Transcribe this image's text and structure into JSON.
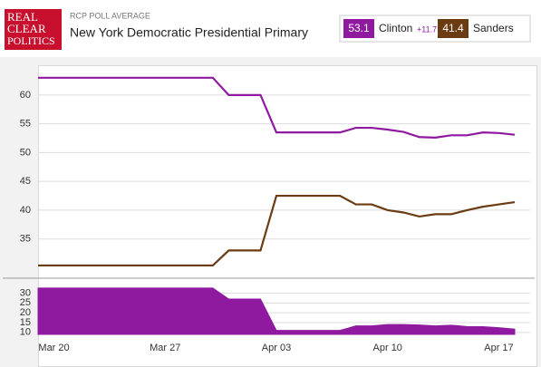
{
  "header": {
    "logo": [
      "REAL",
      "CLEAR",
      "POLITICS"
    ],
    "kicker": "RCP POLL AVERAGE",
    "title": "New York Democratic Presidential Primary"
  },
  "chart_data": [
    {
      "type": "line",
      "x": [
        "Mar 19",
        "Mar 20",
        "Mar 21",
        "Mar 22",
        "Mar 23",
        "Mar 24",
        "Mar 25",
        "Mar 26",
        "Mar 27",
        "Mar 28",
        "Mar 29",
        "Mar 30",
        "Mar 31",
        "Apr 01",
        "Apr 02",
        "Apr 03",
        "Apr 04",
        "Apr 05",
        "Apr 06",
        "Apr 07",
        "Apr 08",
        "Apr 09",
        "Apr 10",
        "Apr 11",
        "Apr 12",
        "Apr 13",
        "Apr 14",
        "Apr 15",
        "Apr 16",
        "Apr 17",
        "Apr 18"
      ],
      "series": [
        {
          "name": "Clinton",
          "color": "#8f1a9f",
          "latest": 53.1,
          "lead": {
            "value": 11.7,
            "label": "+11.7"
          },
          "values": [
            63,
            63,
            63,
            63,
            63,
            63,
            63,
            63,
            63,
            63,
            63,
            63,
            60,
            60,
            60,
            53.5,
            53.5,
            53.5,
            53.5,
            53.5,
            54.3,
            54.3,
            54,
            53.6,
            52.7,
            52.6,
            53,
            53,
            53.5,
            53.4,
            53.1
          ]
        },
        {
          "name": "Sanders",
          "color": "#6b3b12",
          "latest": 41.4,
          "values": [
            30.4,
            30.4,
            30.4,
            30.4,
            30.4,
            30.4,
            30.4,
            30.4,
            30.4,
            30.4,
            30.4,
            30.4,
            33,
            33,
            33,
            42.5,
            42.5,
            42.5,
            42.5,
            42.5,
            41,
            41,
            40,
            39.6,
            38.9,
            39.3,
            39.3,
            40,
            40.6,
            41,
            41.4
          ]
        }
      ],
      "ylim": [
        28.5,
        64.7
      ],
      "yticks": [
        35,
        40,
        45,
        50,
        55,
        60
      ],
      "grid": true
    },
    {
      "type": "area",
      "color": "#8f1a9f",
      "x": [
        "Mar 19",
        "Mar 20",
        "Mar 21",
        "Mar 22",
        "Mar 23",
        "Mar 24",
        "Mar 25",
        "Mar 26",
        "Mar 27",
        "Mar 28",
        "Mar 29",
        "Mar 30",
        "Mar 31",
        "Apr 01",
        "Apr 02",
        "Apr 03",
        "Apr 04",
        "Apr 05",
        "Apr 06",
        "Apr 07",
        "Apr 08",
        "Apr 09",
        "Apr 10",
        "Apr 11",
        "Apr 12",
        "Apr 13",
        "Apr 14",
        "Apr 15",
        "Apr 16",
        "Apr 17",
        "Apr 18"
      ],
      "values": [
        32.6,
        32.6,
        32.6,
        32.6,
        32.6,
        32.6,
        32.6,
        32.6,
        32.6,
        32.6,
        32.6,
        32.6,
        27,
        27,
        27,
        11,
        11,
        11,
        11,
        11,
        13.3,
        13.3,
        14,
        14,
        13.8,
        13.3,
        13.7,
        13,
        12.9,
        12.4,
        11.7
      ],
      "ylim": [
        9,
        33
      ],
      "yticks": [
        10,
        15,
        20,
        25,
        30
      ],
      "xticks": [
        "Mar 20",
        "Mar 27",
        "Apr 03",
        "Apr 10",
        "Apr 17"
      ],
      "grid": true
    }
  ]
}
